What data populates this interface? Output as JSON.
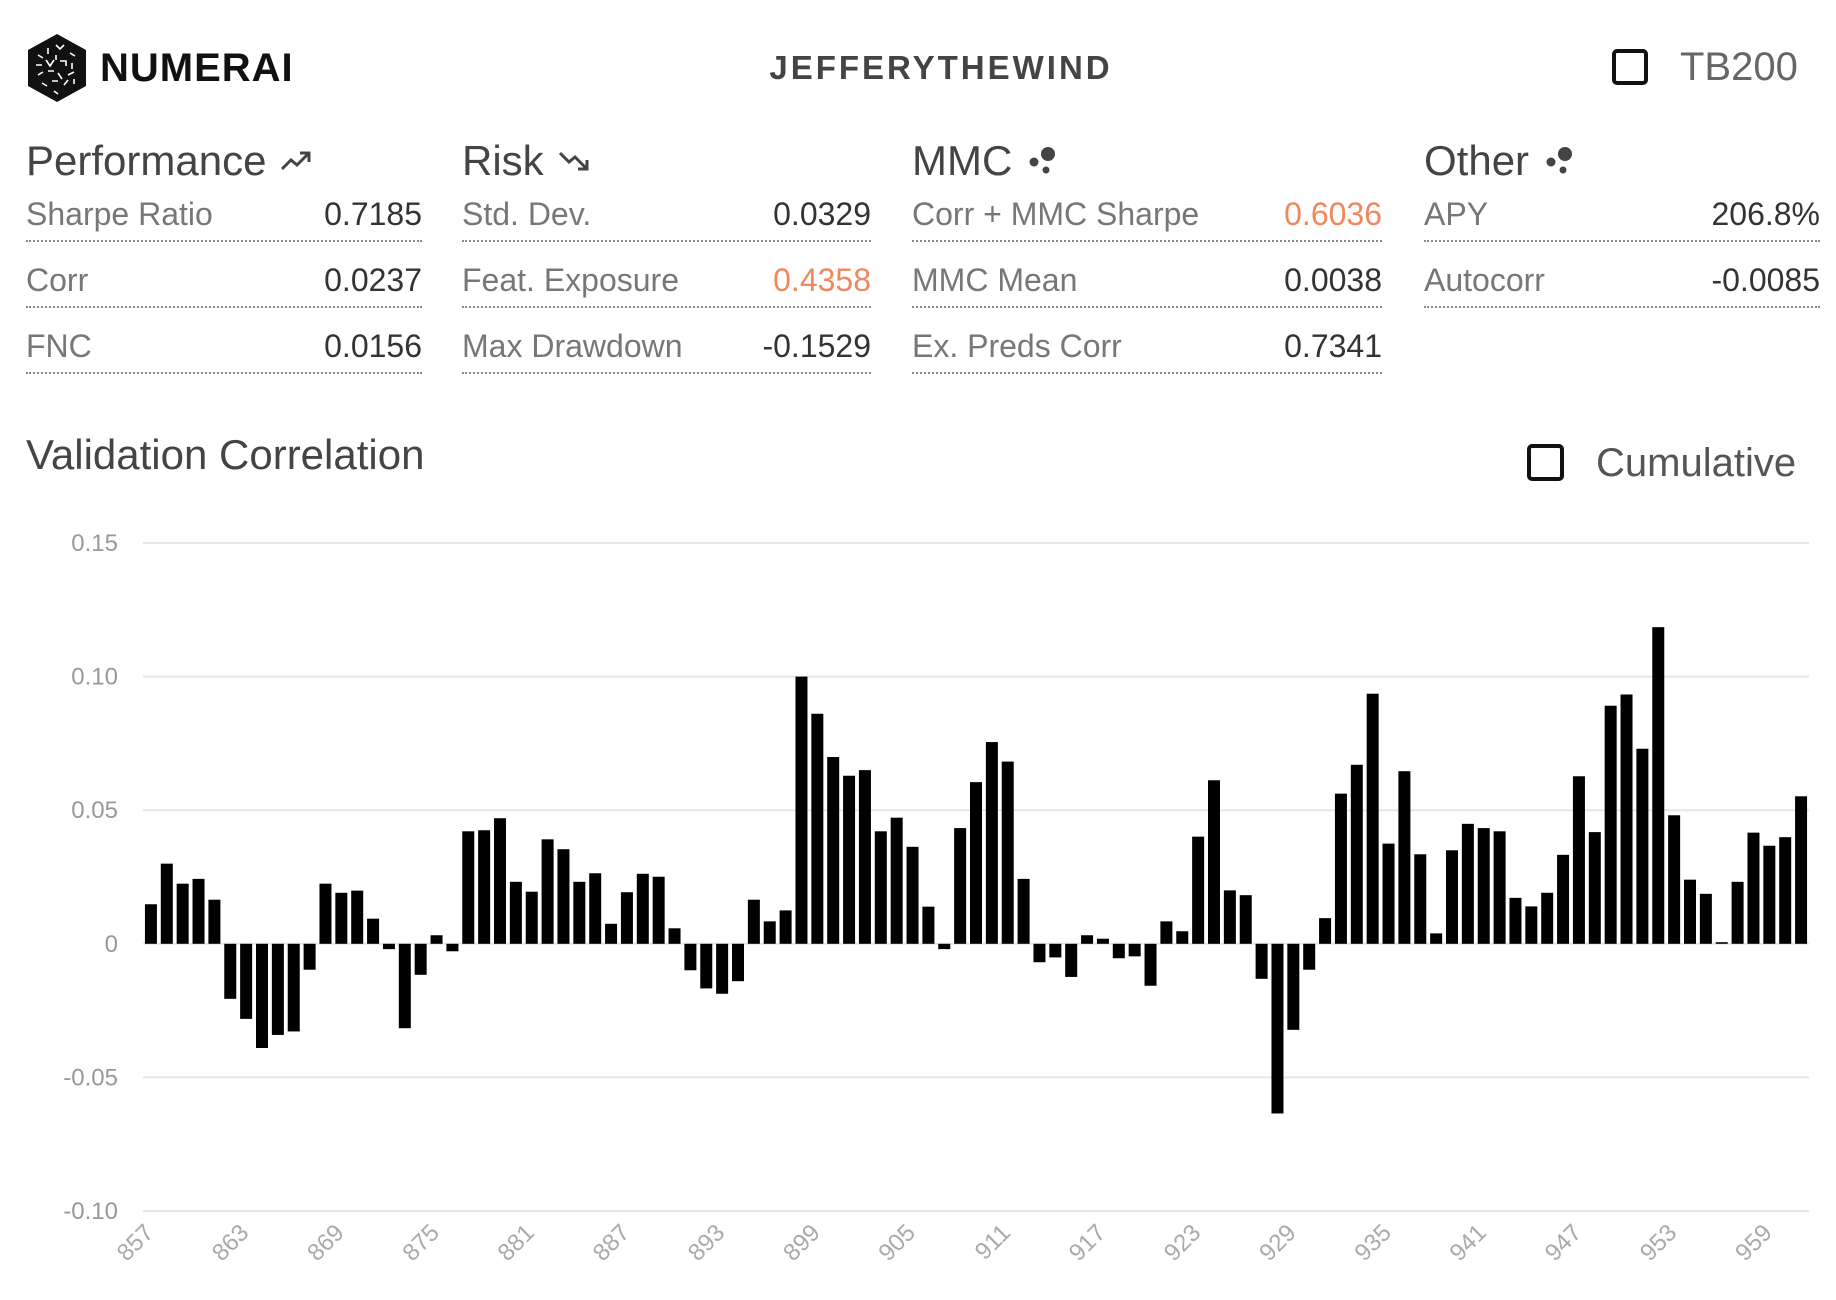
{
  "header": {
    "brand": "NUMERAI",
    "username": "JEFFERYTHEWIND",
    "tb200_label": "TB200",
    "tb200_checked": false
  },
  "sections": [
    {
      "title": "Performance",
      "icon": "trending-up-icon",
      "rows": [
        {
          "label": "Sharpe Ratio",
          "value": "0.7185",
          "warn": false
        },
        {
          "label": "Corr",
          "value": "0.0237",
          "warn": false
        },
        {
          "label": "FNC",
          "value": "0.0156",
          "warn": false
        }
      ]
    },
    {
      "title": "Risk",
      "icon": "trending-down-icon",
      "rows": [
        {
          "label": "Std. Dev.",
          "value": "0.0329",
          "warn": false
        },
        {
          "label": "Feat. Exposure",
          "value": "0.4358",
          "warn": true
        },
        {
          "label": "Max Drawdown",
          "value": "-0.1529",
          "warn": false
        }
      ]
    },
    {
      "title": "MMC",
      "icon": "bubbles-icon",
      "rows": [
        {
          "label": "Corr + MMC Sharpe",
          "value": "0.6036",
          "warn": true
        },
        {
          "label": "MMC Mean",
          "value": "0.0038",
          "warn": false
        },
        {
          "label": "Ex. Preds Corr",
          "value": "0.7341",
          "warn": false
        }
      ]
    },
    {
      "title": "Other",
      "icon": "bubbles-icon",
      "rows": [
        {
          "label": "APY",
          "value": "206.8%",
          "warn": false
        },
        {
          "label": "Autocorr",
          "value": "-0.0085",
          "warn": false
        }
      ]
    }
  ],
  "colors": {
    "warn": "#f0875e",
    "bar": "#000000",
    "grid": "#e6e6e6"
  },
  "chart": {
    "title": "Validation Correlation",
    "cumulative_label": "Cumulative",
    "cumulative_checked": false
  },
  "chart_data": {
    "type": "bar",
    "title": "Validation Correlation",
    "xlabel": "",
    "ylabel": "",
    "ylim": [
      -0.1,
      0.15
    ],
    "yticks": [
      0.15,
      0.1,
      0.05,
      0,
      -0.05,
      -0.1
    ],
    "ytick_labels": [
      "0.15",
      "0.10",
      "0.05",
      "0",
      "-0.05",
      "-0.10"
    ],
    "x_start": 857,
    "xtick_labels": [
      "857",
      "863",
      "869",
      "875",
      "881",
      "887",
      "893",
      "899",
      "905",
      "911",
      "917",
      "923",
      "929",
      "935",
      "941",
      "947",
      "953",
      "959"
    ],
    "grid": true,
    "values": [
      0.0148,
      0.03,
      0.0225,
      0.0243,
      0.0165,
      -0.0206,
      -0.0281,
      -0.039,
      -0.0341,
      -0.0328,
      -0.0097,
      0.0225,
      0.0191,
      0.0199,
      0.0094,
      -0.002,
      -0.0316,
      -0.0116,
      0.0032,
      -0.0028,
      0.0421,
      0.0425,
      0.047,
      0.0232,
      0.0195,
      0.0391,
      0.0354,
      0.0232,
      0.0264,
      0.0075,
      0.0193,
      0.0262,
      0.0251,
      0.0058,
      -0.0099,
      -0.0167,
      -0.0187,
      -0.014,
      0.0165,
      0.0084,
      0.0125,
      0.1,
      0.0861,
      0.0699,
      0.0629,
      0.065,
      0.0421,
      0.0472,
      0.0363,
      0.0139,
      -0.002,
      0.0433,
      0.0605,
      0.0755,
      0.0682,
      0.0243,
      -0.0069,
      -0.0051,
      -0.0124,
      0.0032,
      0.0019,
      -0.0054,
      -0.0047,
      -0.0157,
      0.0084,
      0.0047,
      0.0401,
      0.0612,
      0.02,
      0.0182,
      -0.0131,
      -0.0635,
      -0.0322,
      -0.0097,
      0.0096,
      0.0562,
      0.067,
      0.0936,
      0.0375,
      0.0646,
      0.0335,
      0.0039,
      0.035,
      0.0449,
      0.0433,
      0.0421,
      0.0172,
      0.014,
      0.0191,
      0.0333,
      0.0627,
      0.0418,
      0.0891,
      0.0933,
      0.073,
      0.1185,
      0.0481,
      0.024,
      0.0187,
      0.0006,
      0.0232,
      0.0416,
      0.0367,
      0.0399,
      0.0552
    ]
  }
}
